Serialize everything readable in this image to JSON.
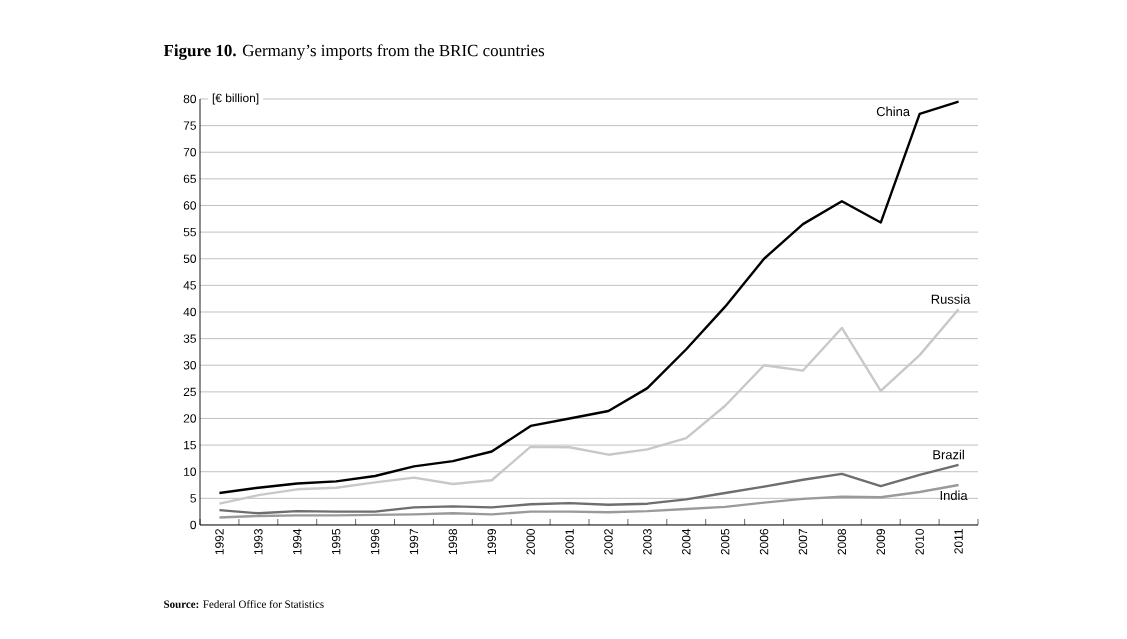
{
  "chart_data": {
    "type": "line",
    "title": "**Figure 10.** Germany’s imports from the BRIC countries",
    "ylabel": "[€ billion]",
    "categories": [
      "1992",
      "1993",
      "1994",
      "1995",
      "1996",
      "1997",
      "1998",
      "1999",
      "2000",
      "2001",
      "2002",
      "2003",
      "2004",
      "2005",
      "2006",
      "2007",
      "2008",
      "2009",
      "2010",
      "2011"
    ],
    "series": [
      {
        "name": "China",
        "color": "#000000",
        "values": [
          6,
          7,
          7.8,
          8.2,
          9.2,
          11,
          12,
          13.8,
          18.6,
          20,
          21.4,
          25.7,
          33,
          41,
          50,
          56.5,
          60.8,
          56.8,
          77.2,
          79.5
        ]
      },
      {
        "name": "Russia",
        "color": "#c8c8c8",
        "values": [
          4,
          5.6,
          6.7,
          7,
          8,
          8.9,
          7.7,
          8.4,
          14.7,
          14.6,
          13.2,
          14.2,
          16.3,
          22.4,
          30,
          29,
          37,
          25.2,
          31.9,
          40.5
        ]
      },
      {
        "name": "Brazil",
        "color": "#6e6e6e",
        "values": [
          2.8,
          2.2,
          2.6,
          2.5,
          2.5,
          3.3,
          3.5,
          3.3,
          3.9,
          4.1,
          3.8,
          4,
          4.8,
          6,
          7.2,
          8.5,
          9.6,
          7.3,
          9.4,
          11.3
        ]
      },
      {
        "name": "India",
        "color": "#9a9a9a",
        "values": [
          1.4,
          1.7,
          1.8,
          1.8,
          1.9,
          2,
          2.2,
          2,
          2.5,
          2.5,
          2.4,
          2.6,
          3,
          3.4,
          4.2,
          4.9,
          5.3,
          5.2,
          6.2,
          7.5
        ]
      }
    ],
    "ylim": [
      0,
      80
    ],
    "yticks": [
      0,
      5,
      10,
      15,
      20,
      25,
      30,
      35,
      40,
      45,
      50,
      55,
      60,
      65,
      70,
      75,
      80
    ],
    "grid": "y",
    "legend": false,
    "marker": "none",
    "line_style": "solid",
    "annotations": [
      "**Source:** Federal Office for Statistics"
    ]
  }
}
